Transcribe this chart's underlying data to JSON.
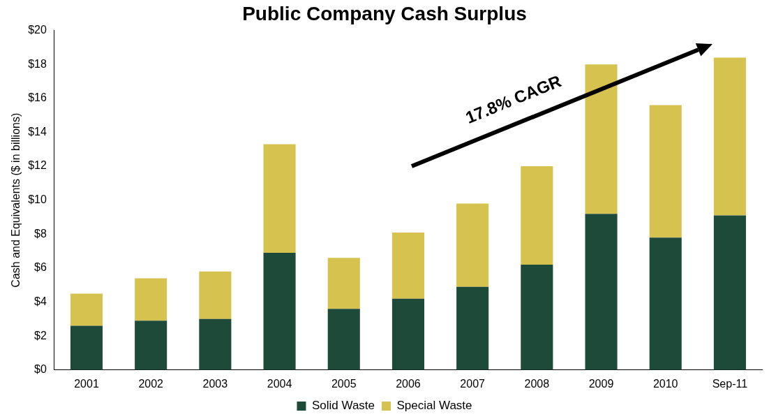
{
  "chart_data": {
    "type": "bar",
    "title": "Public Company Cash Surplus",
    "ylabel": "Cash and Equivalents ($ in billions)",
    "categories": [
      "2001",
      "2002",
      "2003",
      "2004",
      "2005",
      "2006",
      "2007",
      "2008",
      "2009",
      "2010",
      "Sep-11"
    ],
    "stacked": true,
    "series": [
      {
        "name": "Solid Waste",
        "color": "#1e4a3a",
        "values": [
          2.6,
          2.9,
          3.0,
          6.9,
          3.6,
          4.2,
          4.9,
          6.2,
          9.2,
          7.8,
          9.1
        ]
      },
      {
        "name": "Special Waste",
        "color": "#d6c24f",
        "values": [
          1.9,
          2.5,
          2.8,
          6.4,
          3.0,
          3.9,
          4.9,
          5.8,
          8.8,
          7.8,
          9.3
        ]
      }
    ],
    "ylim": [
      0,
      20
    ],
    "yticks": [
      {
        "value": 0,
        "label": "$0"
      },
      {
        "value": 2,
        "label": "$2"
      },
      {
        "value": 4,
        "label": "$4"
      },
      {
        "value": 6,
        "label": "$6"
      },
      {
        "value": 8,
        "label": "$8"
      },
      {
        "value": 10,
        "label": "$10"
      },
      {
        "value": 12,
        "label": "$12"
      },
      {
        "value": 14,
        "label": "$14"
      },
      {
        "value": 16,
        "label": "$16"
      },
      {
        "value": 18,
        "label": "$18"
      },
      {
        "value": 20,
        "label": "$20"
      }
    ],
    "grid": false,
    "legend": "bottom",
    "annotations": [
      "17.8% CAGR"
    ]
  }
}
